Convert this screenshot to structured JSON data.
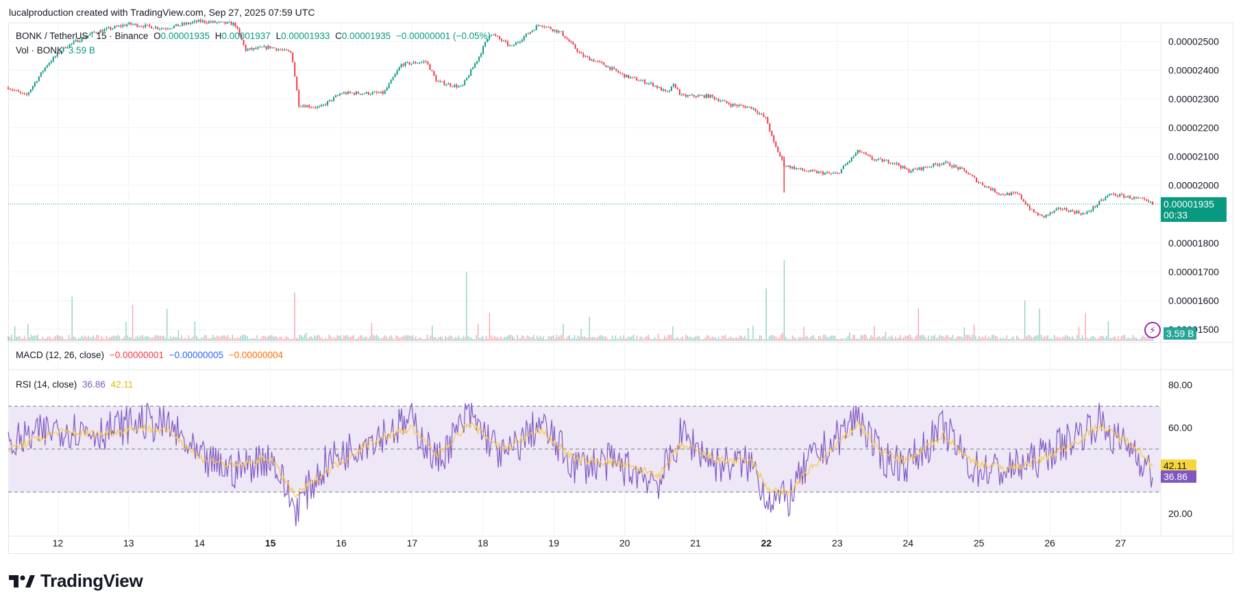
{
  "caption": "lucalproduction created with TradingView.com, Sep 27, 2025 07:59 UTC",
  "legend_main": {
    "symbol": "BONK / TetherUS · 15 · Binance",
    "o_label": "O",
    "o_value": "0.00001935",
    "h_label": "H",
    "h_value": "0.00001937",
    "l_label": "L",
    "l_value": "0.00001933",
    "c_label": "C",
    "c_value": "0.00001935",
    "change": "−0.00000001 (−0.05%)"
  },
  "legend_vol": {
    "label": "Vol · BONK",
    "value": "3.59 B"
  },
  "legend_macd": {
    "label": "MACD (12, 26, close)",
    "v1": "−0.00000001",
    "v2": "−0.00000005",
    "v3": "−0.00000004"
  },
  "legend_rsi": {
    "label": "RSI (14, close)",
    "v1": "36.86",
    "v2": "42.11"
  },
  "price_tag": {
    "price": "0.00001935",
    "countdown": "00:33"
  },
  "vol_tag": "3.59 B",
  "rsi_tags": {
    "ma": "42.11",
    "rsi": "36.86"
  },
  "brand": "TradingView",
  "colors": {
    "up": "#089981",
    "down": "#f23645",
    "rsi": "#7e57c2",
    "rsi_ma": "#f7c948",
    "band": "#ede7f6"
  },
  "chart_data": [
    {
      "type": "candlestick",
      "title": "BONK / TetherUS · 15 · Binance",
      "y_ticks": [
        "0.00002500",
        "0.00002400",
        "0.00002300",
        "0.00002200",
        "0.00002100",
        "0.00002000",
        "0.00001800",
        "0.00001700",
        "0.00001600",
        "0.00001500"
      ],
      "ylim": [
        1.455e-05,
        2.565e-05
      ],
      "x_ticks": [
        "12",
        "13",
        "14",
        "15",
        "16",
        "17",
        "18",
        "19",
        "20",
        "21",
        "22",
        "23",
        "24",
        "25",
        "26",
        "27"
      ],
      "x_range": [
        11.3,
        27.45
      ],
      "last_price": 1.935e-05,
      "close_path": [
        [
          11.3,
          2.34e-05
        ],
        [
          11.55,
          2.31e-05
        ],
        [
          11.85,
          2.42e-05
        ],
        [
          12.1,
          2.48e-05
        ],
        [
          12.5,
          2.53e-05
        ],
        [
          13.0,
          2.56e-05
        ],
        [
          13.5,
          2.545e-05
        ],
        [
          14.0,
          2.57e-05
        ],
        [
          14.5,
          2.56e-05
        ],
        [
          14.65,
          2.47e-05
        ],
        [
          15.0,
          2.48e-05
        ],
        [
          15.3,
          2.46e-05
        ],
        [
          15.4,
          2.28e-05
        ],
        [
          15.7,
          2.27e-05
        ],
        [
          16.0,
          2.32e-05
        ],
        [
          16.6,
          2.32e-05
        ],
        [
          16.85,
          2.42e-05
        ],
        [
          17.2,
          2.43e-05
        ],
        [
          17.35,
          2.36e-05
        ],
        [
          17.7,
          2.34e-05
        ],
        [
          17.95,
          2.45e-05
        ],
        [
          18.1,
          2.53e-05
        ],
        [
          18.4,
          2.48e-05
        ],
        [
          18.8,
          2.56e-05
        ],
        [
          19.1,
          2.53e-05
        ],
        [
          19.4,
          2.45e-05
        ],
        [
          19.7,
          2.42e-05
        ],
        [
          20.0,
          2.38e-05
        ],
        [
          20.4,
          2.35e-05
        ],
        [
          20.6,
          2.32e-05
        ],
        [
          20.7,
          2.35e-05
        ],
        [
          20.8,
          2.31e-05
        ],
        [
          21.2,
          2.31e-05
        ],
        [
          21.5,
          2.28e-05
        ],
        [
          21.8,
          2.27e-05
        ],
        [
          22.0,
          2.23e-05
        ],
        [
          22.1,
          2.15e-05
        ],
        [
          22.25,
          2.07e-05
        ],
        [
          22.55,
          2.05e-05
        ],
        [
          22.9,
          2.04e-05
        ],
        [
          23.0,
          2.04e-05
        ],
        [
          23.3,
          2.12e-05
        ],
        [
          23.5,
          2.09e-05
        ],
        [
          23.8,
          2.08e-05
        ],
        [
          24.0,
          2.05e-05
        ],
        [
          24.2,
          2.06e-05
        ],
        [
          24.5,
          2.08e-05
        ],
        [
          24.8,
          2.05e-05
        ],
        [
          25.0,
          2.01e-05
        ],
        [
          25.3,
          1.97e-05
        ],
        [
          25.55,
          1.97e-05
        ],
        [
          25.75,
          1.91e-05
        ],
        [
          25.9,
          1.89e-05
        ],
        [
          26.15,
          1.92e-05
        ],
        [
          26.5,
          1.9e-05
        ],
        [
          26.65,
          1.93e-05
        ],
        [
          26.85,
          1.97e-05
        ],
        [
          27.1,
          1.96e-05
        ],
        [
          27.3,
          1.95e-05
        ],
        [
          27.45,
          1.935e-05
        ]
      ]
    },
    {
      "type": "bar",
      "title": "Vol · BONK",
      "last_value": "3.59 B",
      "spikes": [
        [
          12.2,
          0.55
        ],
        [
          13.05,
          0.45
        ],
        [
          13.55,
          0.4
        ],
        [
          15.35,
          0.6
        ],
        [
          17.77,
          0.85
        ],
        [
          18.1,
          0.35
        ],
        [
          19.5,
          0.3
        ],
        [
          22.0,
          0.65
        ],
        [
          22.25,
          1.0
        ],
        [
          24.15,
          0.4
        ],
        [
          25.65,
          0.5
        ],
        [
          25.85,
          0.4
        ],
        [
          26.5,
          0.35
        ]
      ]
    },
    {
      "type": "line",
      "title": "RSI (14, close)",
      "y_ticks": [
        "80.00",
        "60.00",
        "20.00"
      ],
      "ylim": [
        12,
        87
      ],
      "bands": {
        "upper": 70,
        "middle": 50,
        "lower": 30
      },
      "series": [
        {
          "name": "RSI",
          "last_value": 36.86,
          "anchors": [
            [
              11.3,
              52
            ],
            [
              12.0,
              60
            ],
            [
              12.6,
              58
            ],
            [
              13.2,
              63
            ],
            [
              13.6,
              60
            ],
            [
              14.0,
              45
            ],
            [
              14.5,
              40
            ],
            [
              15.0,
              47
            ],
            [
              15.35,
              22
            ],
            [
              15.8,
              44
            ],
            [
              16.4,
              55
            ],
            [
              17.0,
              63
            ],
            [
              17.35,
              44
            ],
            [
              17.8,
              66
            ],
            [
              18.3,
              46
            ],
            [
              18.8,
              62
            ],
            [
              19.3,
              42
            ],
            [
              19.8,
              44
            ],
            [
              20.5,
              35
            ],
            [
              20.8,
              57
            ],
            [
              21.3,
              43
            ],
            [
              21.8,
              43
            ],
            [
              22.0,
              28
            ],
            [
              22.3,
              26
            ],
            [
              22.6,
              44
            ],
            [
              23.0,
              55
            ],
            [
              23.3,
              66
            ],
            [
              23.6,
              46
            ],
            [
              24.0,
              43
            ],
            [
              24.5,
              60
            ],
            [
              24.9,
              41
            ],
            [
              25.4,
              40
            ],
            [
              25.8,
              45
            ],
            [
              26.3,
              55
            ],
            [
              26.7,
              63
            ],
            [
              26.9,
              55
            ],
            [
              27.2,
              50
            ],
            [
              27.45,
              37
            ]
          ]
        },
        {
          "name": "RSI-based MA",
          "last_value": 42.11,
          "anchors": [
            [
              11.3,
              50
            ],
            [
              12.0,
              58
            ],
            [
              12.6,
              57
            ],
            [
              13.2,
              60
            ],
            [
              13.6,
              58
            ],
            [
              14.0,
              46
            ],
            [
              14.5,
              42
            ],
            [
              15.0,
              46
            ],
            [
              15.35,
              28
            ],
            [
              15.8,
              40
            ],
            [
              16.4,
              53
            ],
            [
              17.0,
              60
            ],
            [
              17.35,
              47
            ],
            [
              17.8,
              62
            ],
            [
              18.3,
              50
            ],
            [
              18.8,
              59
            ],
            [
              19.3,
              45
            ],
            [
              19.8,
              44
            ],
            [
              20.5,
              38
            ],
            [
              20.8,
              52
            ],
            [
              21.3,
              45
            ],
            [
              21.8,
              44
            ],
            [
              22.0,
              32
            ],
            [
              22.3,
              29
            ],
            [
              22.6,
              40
            ],
            [
              23.0,
              52
            ],
            [
              23.3,
              62
            ],
            [
              23.6,
              49
            ],
            [
              24.0,
              44
            ],
            [
              24.5,
              57
            ],
            [
              24.9,
              44
            ],
            [
              25.4,
              41
            ],
            [
              25.8,
              44
            ],
            [
              26.3,
              52
            ],
            [
              26.7,
              61
            ],
            [
              26.9,
              57
            ],
            [
              27.2,
              52
            ],
            [
              27.45,
              42
            ]
          ]
        }
      ]
    }
  ]
}
